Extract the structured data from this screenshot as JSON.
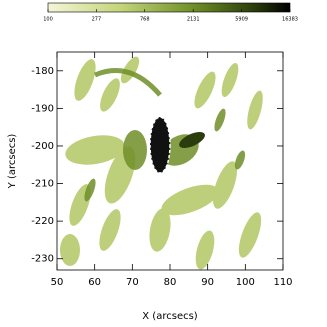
{
  "chart_data": {
    "type": "image",
    "xlabel": "X (arcsecs)",
    "ylabel": "Y (arcsecs)",
    "xlim": [
      50,
      110
    ],
    "xticks": [
      50,
      60,
      70,
      80,
      90,
      100,
      110
    ],
    "ylim": [
      -233,
      -175
    ],
    "yticks": [
      -230,
      -220,
      -210,
      -200,
      -190,
      -180
    ],
    "colorbar": {
      "lim": [
        100,
        16383
      ],
      "log": true,
      "ticks": [
        100,
        277,
        768,
        2131,
        5909,
        16383
      ]
    }
  }
}
